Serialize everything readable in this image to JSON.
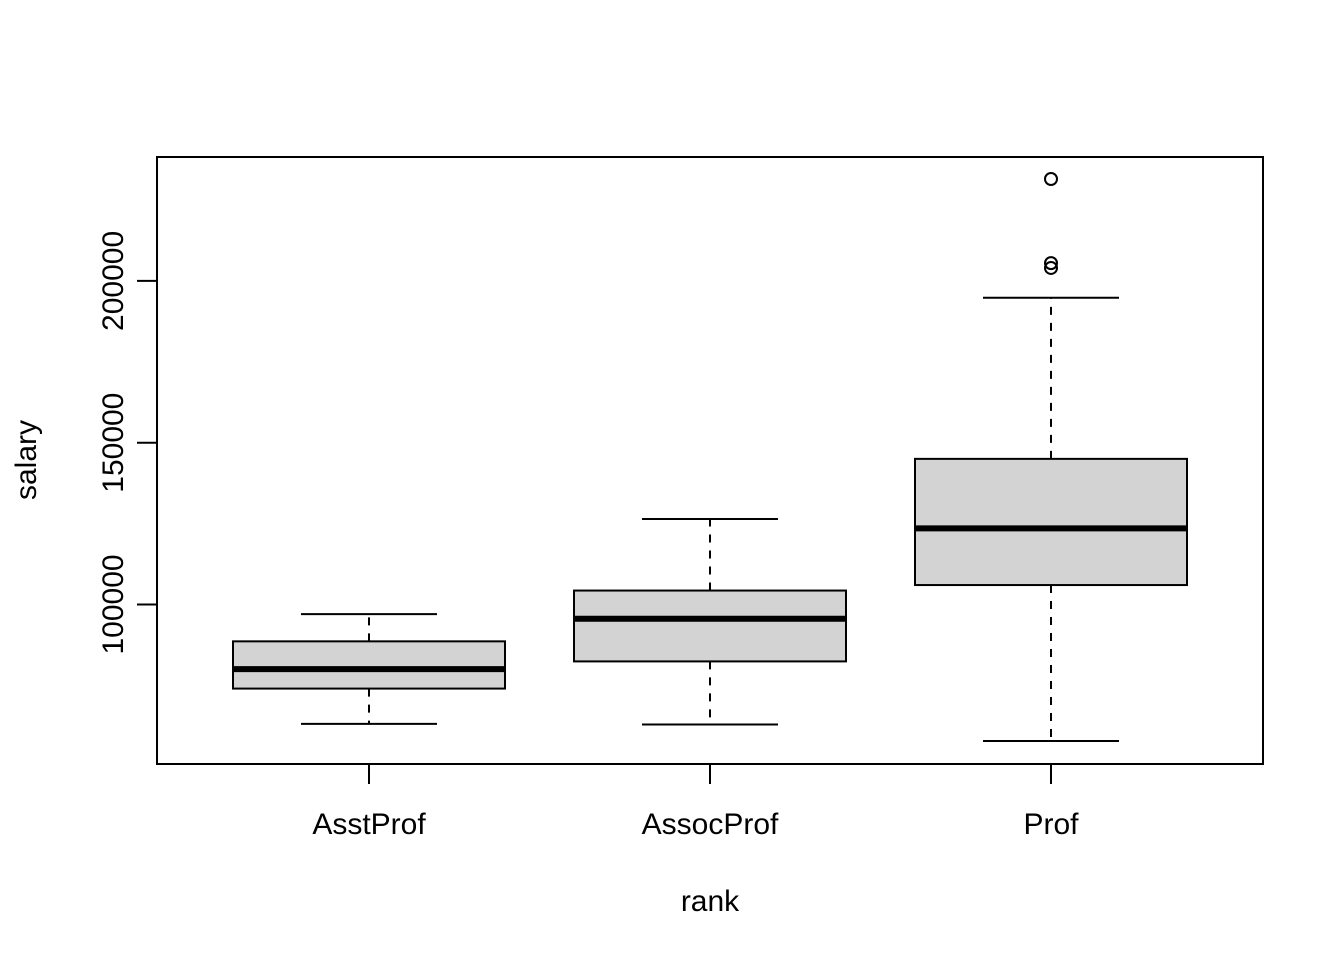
{
  "chart_data": {
    "type": "boxplot",
    "xlabel": "rank",
    "ylabel": "salary",
    "categories": [
      "AsstProf",
      "AssocProf",
      "Prof"
    ],
    "boxes": [
      {
        "name": "AsstProf",
        "whisker_low": 63100,
        "q1": 74000,
        "median": 80000,
        "q3": 88600,
        "whisker_high": 97000,
        "outliers": []
      },
      {
        "name": "AssocProf",
        "whisker_low": 62900,
        "q1": 82400,
        "median": 95600,
        "q3": 104300,
        "whisker_high": 126400,
        "outliers": []
      },
      {
        "name": "Prof",
        "whisker_low": 57800,
        "q1": 106000,
        "median": 123500,
        "q3": 145000,
        "whisker_high": 194800,
        "outliers": [
          204000,
          205500,
          231500
        ]
      }
    ],
    "ylim": [
      57800,
      231500
    ],
    "yticks": [
      100000,
      150000,
      200000
    ],
    "ytick_labels": [
      "100000",
      "150000",
      "200000"
    ],
    "box_fill": "#d3d3d3",
    "grid": false
  }
}
